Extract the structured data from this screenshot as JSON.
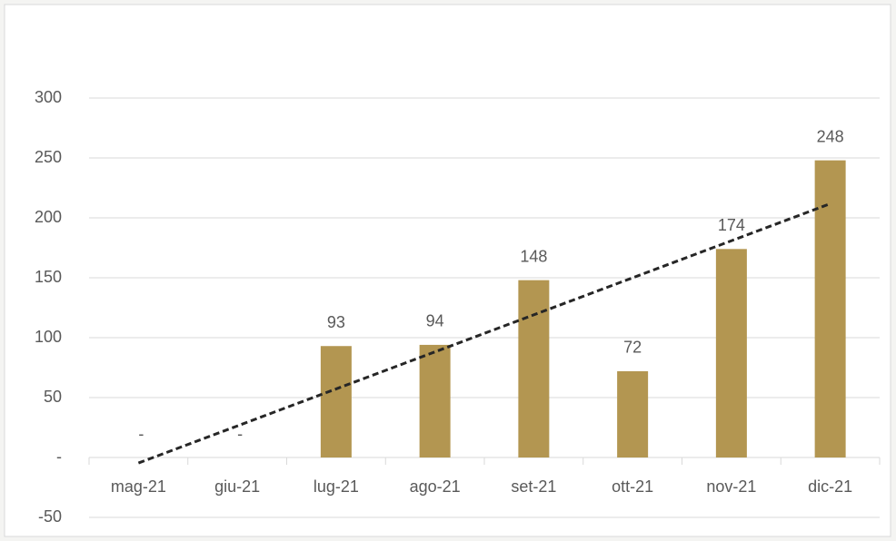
{
  "chart_data": {
    "type": "bar",
    "categories": [
      "mag-21",
      "giu-21",
      "lug-21",
      "ago-21",
      "set-21",
      "ott-21",
      "nov-21",
      "dic-21"
    ],
    "values": [
      0,
      0,
      93,
      94,
      148,
      72,
      174,
      248
    ],
    "value_labels": [
      "-",
      "-",
      "93",
      "94",
      "148",
      "72",
      "174",
      "248"
    ],
    "color": "#b39651",
    "trendline": {
      "type": "linear",
      "color": "#262626",
      "values": [
        -4.6,
        211.8
      ]
    },
    "ylim": [
      -50,
      300
    ],
    "yticks": [
      -50,
      {
        "value": 0,
        "label": "-"
      },
      50,
      100,
      150,
      200,
      250,
      300
    ],
    "grid": true
  }
}
